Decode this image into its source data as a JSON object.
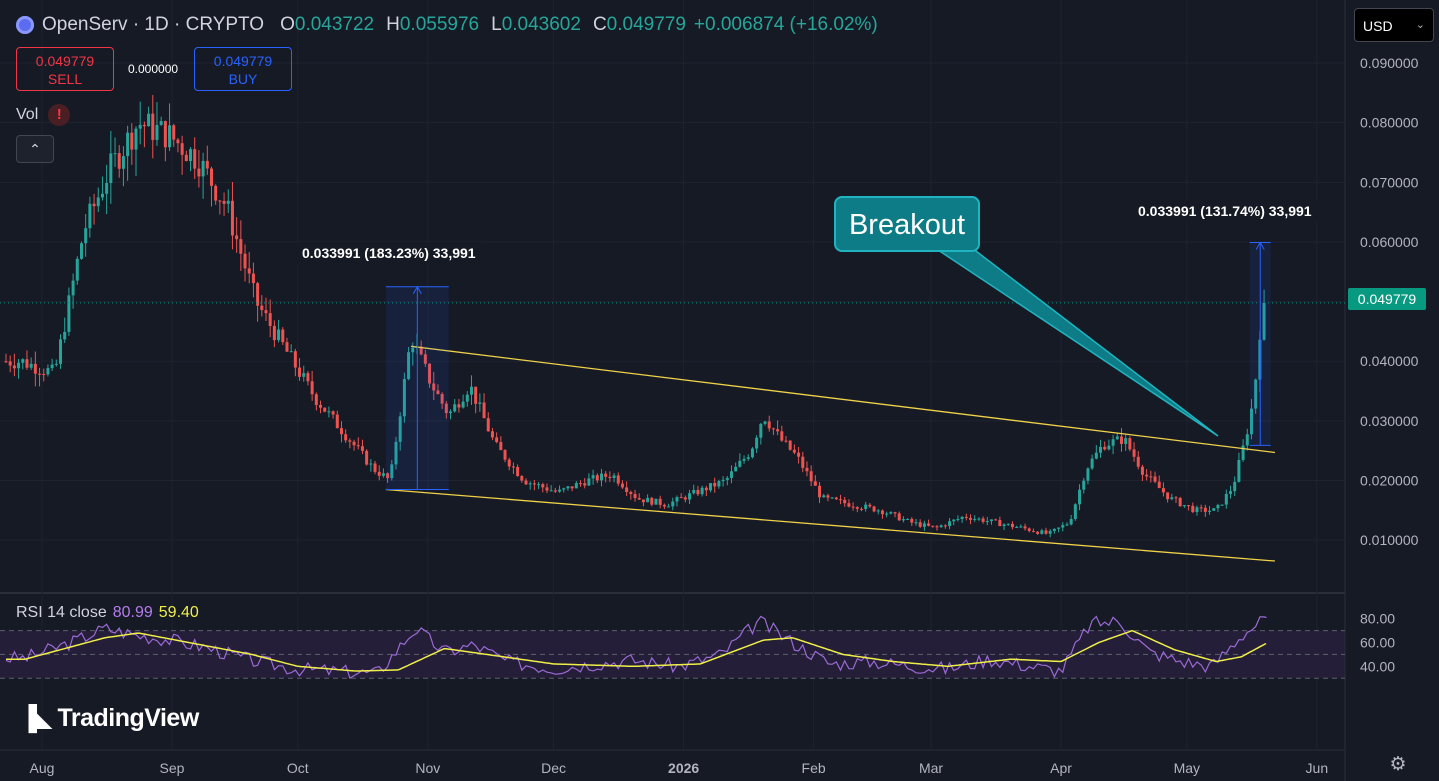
{
  "header": {
    "title": "OpenServ · 1D · CRYPTO",
    "open_label": "O",
    "open": "0.043722",
    "high_label": "H",
    "high": "0.055976",
    "low_label": "L",
    "low": "0.043602",
    "close_label": "C",
    "close": "0.049779",
    "change": "+0.006874 (+16.02%)"
  },
  "trade": {
    "sell_price": "0.049779",
    "sell_label": "SELL",
    "buy_price": "0.049779",
    "buy_label": "BUY",
    "spread": "0.000000"
  },
  "volume": {
    "label": "Vol",
    "warning": "!"
  },
  "currency": {
    "label": "USD"
  },
  "annotations": {
    "callout": "Breakout",
    "measure1": "0.033991 (183.23%) 33,991",
    "measure2": "0.033991 (131.74%) 33,991",
    "last_price": "0.049779"
  },
  "rsi": {
    "label": "RSI 14 close",
    "rsi_value": "80.99",
    "ma_value": "59.40"
  },
  "branding": {
    "name": "TradingView"
  },
  "icons": {
    "settings": "gear-icon",
    "collapse": "chevron-up-icon",
    "logo": "tradingview-logo-icon"
  },
  "colors": {
    "up": "#26a69a",
    "down": "#ef5350",
    "trendline": "#f0d24a",
    "rsi": "#9c6ad6",
    "rsi_ma": "#f0ef4a",
    "callout": "#0e7c86"
  },
  "chart_data": {
    "type": "candlestick",
    "price_axis": {
      "ticks": [
        "0.090000",
        "0.080000",
        "0.070000",
        "0.060000",
        "0.050000",
        "0.040000",
        "0.030000",
        "0.020000",
        "0.010000"
      ],
      "values": [
        0.09,
        0.08,
        0.07,
        0.06,
        0.05,
        0.04,
        0.03,
        0.02,
        0.01
      ],
      "ylim": [
        0.0,
        0.095
      ]
    },
    "time_axis": {
      "ticks": [
        "Aug",
        "Sep",
        "Oct",
        "Nov",
        "Dec",
        "2026",
        "Feb",
        "Mar",
        "Apr",
        "May",
        "Jun"
      ]
    },
    "rsi_axis": {
      "ticks": [
        "80.00",
        "60.00",
        "40.00"
      ],
      "values": [
        80,
        60,
        40
      ],
      "upper_band": 70,
      "middle": 50,
      "lower_band": 30,
      "ylim": [
        25,
        85
      ]
    },
    "price_path": [
      [
        "2025-07-28",
        0.04
      ],
      [
        "2025-08-05",
        0.038
      ],
      [
        "2025-08-12",
        0.062
      ],
      [
        "2025-08-18",
        0.072
      ],
      [
        "2025-08-25",
        0.08
      ],
      [
        "2025-09-01",
        0.078
      ],
      [
        "2025-09-08",
        0.074
      ],
      [
        "2025-09-15",
        0.066
      ],
      [
        "2025-09-22",
        0.05
      ],
      [
        "2025-09-29",
        0.042
      ],
      [
        "2025-10-06",
        0.034
      ],
      [
        "2025-10-13",
        0.028
      ],
      [
        "2025-10-20",
        0.022
      ],
      [
        "2025-10-24",
        0.02
      ],
      [
        "2025-10-29",
        0.044
      ],
      [
        "2025-11-03",
        0.036
      ],
      [
        "2025-11-07",
        0.031
      ],
      [
        "2025-11-12",
        0.036
      ],
      [
        "2025-11-18",
        0.026
      ],
      [
        "2025-11-25",
        0.02
      ],
      [
        "2025-12-03",
        0.018
      ],
      [
        "2025-12-10",
        0.02
      ],
      [
        "2025-12-16",
        0.021
      ],
      [
        "2025-12-22",
        0.017
      ],
      [
        "2025-12-29",
        0.016
      ],
      [
        "2026-01-05",
        0.018
      ],
      [
        "2026-01-12",
        0.02
      ],
      [
        "2026-01-18",
        0.025
      ],
      [
        "2026-01-21",
        0.031
      ],
      [
        "2026-01-25",
        0.027
      ],
      [
        "2026-01-29",
        0.024
      ],
      [
        "2026-02-04",
        0.017
      ],
      [
        "2026-02-11",
        0.016
      ],
      [
        "2026-02-18",
        0.015
      ],
      [
        "2026-02-25",
        0.013
      ],
      [
        "2026-03-03",
        0.012
      ],
      [
        "2026-03-10",
        0.014
      ],
      [
        "2026-03-17",
        0.013
      ],
      [
        "2026-03-24",
        0.012
      ],
      [
        "2026-03-30",
        0.011
      ],
      [
        "2026-04-04",
        0.013
      ],
      [
        "2026-04-08",
        0.022
      ],
      [
        "2026-04-12",
        0.026
      ],
      [
        "2026-04-17",
        0.027
      ],
      [
        "2026-04-22",
        0.021
      ],
      [
        "2026-04-28",
        0.017
      ],
      [
        "2026-05-04",
        0.015
      ],
      [
        "2026-05-09",
        0.015
      ],
      [
        "2026-05-13",
        0.019
      ],
      [
        "2026-05-16",
        0.027
      ],
      [
        "2026-05-18",
        0.034
      ],
      [
        "2026-05-20",
        0.04977
      ]
    ],
    "rsi_path": [
      [
        "2025-07-28",
        47
      ],
      [
        "2025-08-08",
        60
      ],
      [
        "2025-08-16",
        72
      ],
      [
        "2025-08-24",
        66
      ],
      [
        "2025-09-01",
        62
      ],
      [
        "2025-09-10",
        55
      ],
      [
        "2025-09-20",
        45
      ],
      [
        "2025-09-30",
        38
      ],
      [
        "2025-10-10",
        36
      ],
      [
        "2025-10-20",
        34
      ],
      [
        "2025-10-29",
        72
      ],
      [
        "2025-11-05",
        52
      ],
      [
        "2025-11-12",
        58
      ],
      [
        "2025-11-20",
        44
      ],
      [
        "2025-12-01",
        38
      ],
      [
        "2025-12-10",
        42
      ],
      [
        "2025-12-20",
        45
      ],
      [
        "2025-12-31",
        40
      ],
      [
        "2026-01-10",
        50
      ],
      [
        "2026-01-19",
        78
      ],
      [
        "2026-01-27",
        60
      ],
      [
        "2026-02-05",
        42
      ],
      [
        "2026-02-15",
        44
      ],
      [
        "2026-02-25",
        40
      ],
      [
        "2026-03-05",
        38
      ],
      [
        "2026-03-15",
        46
      ],
      [
        "2026-03-25",
        40
      ],
      [
        "2026-04-01",
        36
      ],
      [
        "2026-04-08",
        76
      ],
      [
        "2026-04-15",
        78
      ],
      [
        "2026-04-22",
        52
      ],
      [
        "2026-04-30",
        44
      ],
      [
        "2026-05-07",
        40
      ],
      [
        "2026-05-14",
        66
      ],
      [
        "2026-05-20",
        81
      ]
    ],
    "rsi_ma_path": [
      [
        "2025-07-28",
        46
      ],
      [
        "2025-08-16",
        64
      ],
      [
        "2025-08-24",
        68
      ],
      [
        "2025-09-05",
        60
      ],
      [
        "2025-09-20",
        50
      ],
      [
        "2025-10-01",
        40
      ],
      [
        "2025-10-15",
        36
      ],
      [
        "2025-10-25",
        37
      ],
      [
        "2025-11-05",
        55
      ],
      [
        "2025-11-15",
        50
      ],
      [
        "2025-12-01",
        42
      ],
      [
        "2025-12-20",
        40
      ],
      [
        "2026-01-05",
        42
      ],
      [
        "2026-01-20",
        62
      ],
      [
        "2026-01-27",
        64
      ],
      [
        "2026-02-08",
        50
      ],
      [
        "2026-02-20",
        44
      ],
      [
        "2026-03-05",
        40
      ],
      [
        "2026-03-20",
        46
      ],
      [
        "2026-04-01",
        44
      ],
      [
        "2026-04-10",
        60
      ],
      [
        "2026-04-18",
        70
      ],
      [
        "2026-04-28",
        54
      ],
      [
        "2026-05-08",
        44
      ],
      [
        "2026-05-14",
        48
      ],
      [
        "2026-05-20",
        59.4
      ]
    ],
    "trendlines": [
      {
        "name": "resistance",
        "from": [
          "2025-10-28",
          0.0425
        ],
        "to": [
          "2026-05-22",
          0.0247
        ]
      },
      {
        "name": "support",
        "from": [
          "2025-10-22",
          0.0185
        ],
        "to": [
          "2026-05-22",
          0.0065
        ]
      }
    ],
    "measures": [
      {
        "from": [
          "2025-10-22",
          0.0185
        ],
        "to": [
          "2025-11-06",
          0.0525
        ],
        "label_key": "measure1"
      },
      {
        "from": [
          "2026-05-16",
          0.0259
        ],
        "to": [
          "2026-05-21",
          0.0599
        ],
        "label_key": "measure2"
      }
    ],
    "current_price": 0.049779,
    "grid": true,
    "legend_placement": "top-left"
  }
}
